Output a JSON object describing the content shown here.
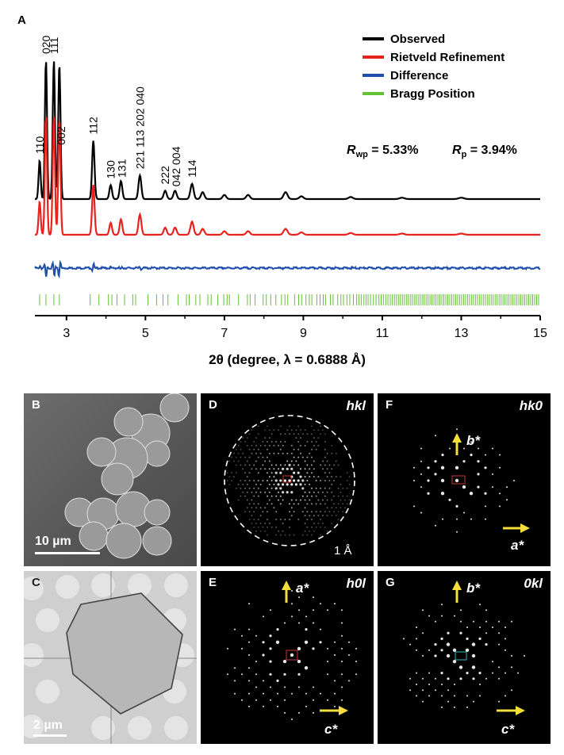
{
  "chart_data": {
    "type": "line",
    "panel_label": "A",
    "xlabel": "2θ (degree, λ = 0.6888 Å)",
    "xlim": [
      2.2,
      15
    ],
    "xticks": [
      "3",
      "5",
      "7",
      "9",
      "11",
      "13",
      "15"
    ],
    "legend": {
      "placement": "top-right",
      "entries": [
        {
          "name": "Observed",
          "color": "#000000"
        },
        {
          "name": "Rietveld Refinement",
          "color": "#e8231d"
        },
        {
          "name": "Difference",
          "color": "#1f4faa"
        },
        {
          "name": "Bragg Position",
          "color": "#63c232"
        }
      ]
    },
    "stats": {
      "rwp": "R_wp = 5.33%",
      "rp": "R_p = 3.94%"
    },
    "peak_labels": [
      {
        "x": 2.32,
        "text": "110"
      },
      {
        "x": 2.48,
        "text": "020"
      },
      {
        "x": 2.68,
        "text": "111"
      },
      {
        "x": 2.86,
        "text": "002"
      },
      {
        "x": 3.68,
        "text": "112"
      },
      {
        "x": 4.12,
        "text": "130"
      },
      {
        "x": 4.4,
        "text": "131"
      },
      {
        "x": 4.86,
        "text": "221 113 202 040"
      },
      {
        "x": 5.5,
        "text": "222"
      },
      {
        "x": 5.78,
        "text": "042 004"
      },
      {
        "x": 6.18,
        "text": "114"
      }
    ],
    "peaks": [
      {
        "x": 2.32,
        "h": 0.28
      },
      {
        "x": 2.48,
        "h": 1.0
      },
      {
        "x": 2.68,
        "h": 1.0
      },
      {
        "x": 2.82,
        "h": 0.97
      },
      {
        "x": 3.68,
        "h": 0.42
      },
      {
        "x": 4.12,
        "h": 0.1
      },
      {
        "x": 4.38,
        "h": 0.13
      },
      {
        "x": 4.86,
        "h": 0.17
      },
      {
        "x": 5.5,
        "h": 0.06
      },
      {
        "x": 5.75,
        "h": 0.06
      },
      {
        "x": 6.18,
        "h": 0.11
      },
      {
        "x": 6.45,
        "h": 0.05
      },
      {
        "x": 7.0,
        "h": 0.03
      },
      {
        "x": 7.6,
        "h": 0.03
      },
      {
        "x": 8.55,
        "h": 0.05
      },
      {
        "x": 8.95,
        "h": 0.02
      },
      {
        "x": 10.2,
        "h": 0.015
      },
      {
        "x": 11.5,
        "h": 0.01
      },
      {
        "x": 13.0,
        "h": 0.01
      }
    ]
  },
  "panels": {
    "B": {
      "label": "B",
      "scale": "10 µm"
    },
    "C": {
      "label": "C",
      "scale": "2 µm"
    },
    "D": {
      "label": "D",
      "tag": "hkl",
      "res": "1 Å"
    },
    "E": {
      "label": "E",
      "tag": "h0l",
      "up": "a*",
      "right": "c*"
    },
    "F": {
      "label": "F",
      "tag": "hk0",
      "up": "b*",
      "right": "a*"
    },
    "G": {
      "label": "G",
      "tag": "0kl",
      "up": "b*",
      "right": "c*"
    }
  }
}
